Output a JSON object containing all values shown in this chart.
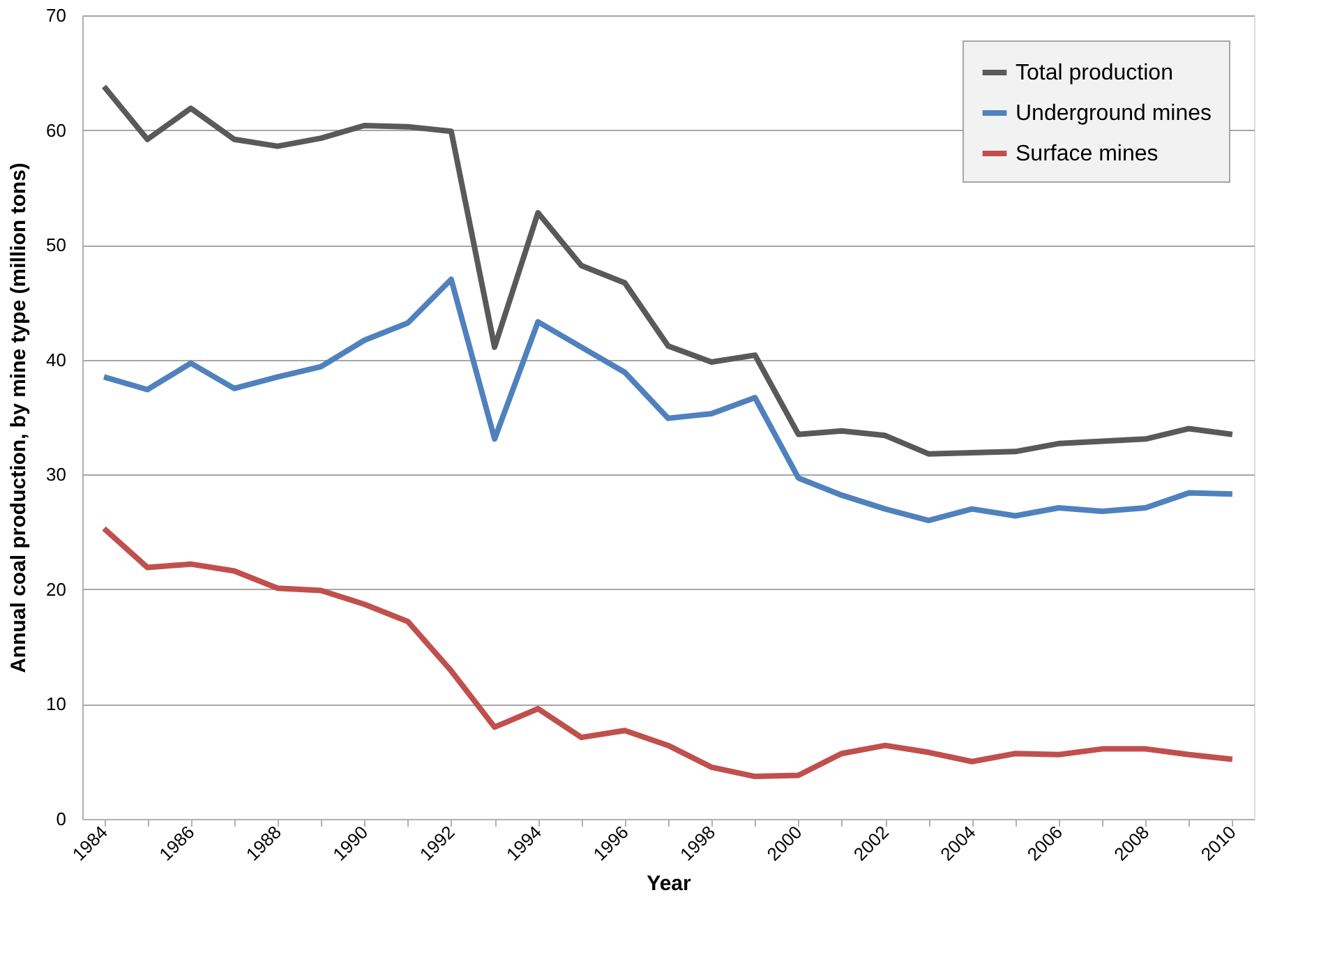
{
  "chart_data": {
    "type": "line",
    "xlabel": "Year",
    "ylabel": "Annual coal production, by mine type (million tons)",
    "categories": [
      "1984",
      null,
      "1986",
      null,
      "1988",
      null,
      "1990",
      null,
      "1992",
      null,
      "1994",
      null,
      "1996",
      null,
      "1998",
      null,
      "2000",
      null,
      "2002",
      null,
      "2004",
      null,
      "2006",
      null,
      "2008",
      null,
      "2010"
    ],
    "series": [
      {
        "name": "Total production",
        "color": "#595959",
        "values": [
          63.8,
          59.2,
          61.9,
          59.2,
          58.6,
          59.3,
          60.4,
          60.3,
          59.9,
          41.1,
          52.8,
          48.2,
          46.7,
          41.2,
          39.8,
          40.4,
          33.5,
          33.8,
          33.4,
          31.8,
          31.9,
          32.0,
          32.7,
          32.9,
          33.1,
          34.0,
          33.5
        ]
      },
      {
        "name": "Underground mines",
        "color": "#4f81bd",
        "values": [
          38.5,
          37.4,
          39.7,
          37.5,
          38.5,
          39.4,
          41.7,
          43.2,
          47.0,
          33.1,
          43.3,
          41.1,
          38.9,
          34.9,
          35.3,
          36.7,
          29.7,
          28.2,
          27.0,
          26.0,
          27.0,
          26.4,
          27.1,
          26.8,
          27.1,
          28.4,
          28.3
        ]
      },
      {
        "name": "Surface mines",
        "color": "#c0504d",
        "values": [
          25.3,
          21.9,
          22.2,
          21.6,
          20.1,
          19.9,
          18.7,
          17.2,
          12.9,
          8.0,
          9.6,
          7.1,
          7.7,
          6.4,
          4.5,
          3.7,
          3.8,
          5.7,
          6.4,
          5.8,
          5.0,
          5.7,
          5.6,
          6.1,
          6.1,
          5.6,
          5.2
        ]
      }
    ],
    "ylim": [
      0,
      70
    ],
    "yticks": [
      0,
      10,
      20,
      30,
      40,
      50,
      60,
      70
    ],
    "grid": "y",
    "legend": "top right",
    "marker": "none",
    "line_style": "solid"
  }
}
